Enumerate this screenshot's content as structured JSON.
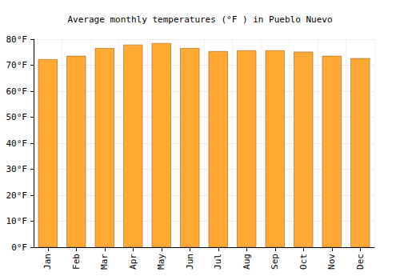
{
  "chart_data": {
    "type": "bar",
    "title": "Average monthly temperatures (°F ) in Pueblo Nuevo",
    "categories": [
      "Jan",
      "Feb",
      "Mar",
      "Apr",
      "May",
      "Jun",
      "Jul",
      "Aug",
      "Sep",
      "Oct",
      "Nov",
      "Dec"
    ],
    "values": [
      72.3,
      73.6,
      76.6,
      77.9,
      78.5,
      76.6,
      75.4,
      75.7,
      75.7,
      75.2,
      73.6,
      72.7
    ],
    "color": "#ffa834",
    "ylim": [
      0,
      80
    ],
    "yticks": [
      {
        "value": 0,
        "label": "0°F"
      },
      {
        "value": 10,
        "label": "10°F"
      },
      {
        "value": 20,
        "label": "20°F"
      },
      {
        "value": 30,
        "label": "30°F"
      },
      {
        "value": 40,
        "label": "40°F"
      },
      {
        "value": 50,
        "label": "50°F"
      },
      {
        "value": 60,
        "label": "60°F"
      },
      {
        "value": 70,
        "label": "70°F"
      },
      {
        "value": 80,
        "label": "80°F"
      }
    ],
    "grid": true
  }
}
